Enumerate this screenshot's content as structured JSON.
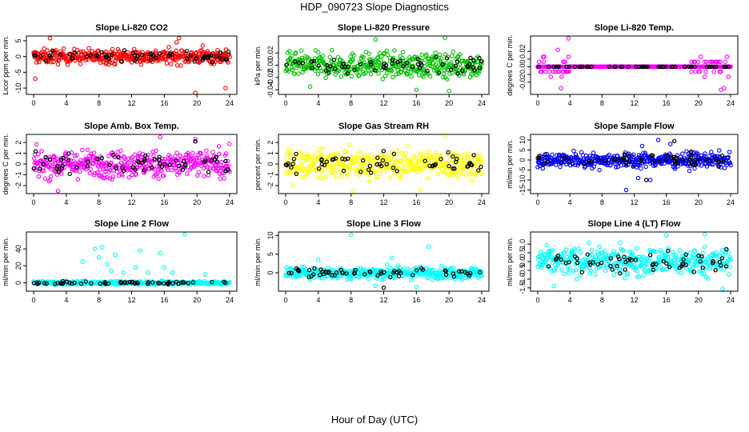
{
  "title": "HDP_090723  Slope Diagnostics",
  "x_axis_title": "Hour of Day (UTC)",
  "chart_data": [
    {
      "type": "scatter",
      "title": "Slope Li-820 CO2",
      "ylabel": "Licor ppm per min.",
      "color": "#ff0000",
      "xlim": [
        0,
        24
      ],
      "ylim": [
        -11.5,
        6
      ],
      "xticks": [
        0,
        4,
        8,
        12,
        16,
        20,
        24
      ],
      "yticks": [
        -10,
        -5,
        0,
        5
      ],
      "ytick_labels": [
        "-10",
        "-5",
        "0",
        "5"
      ],
      "series_note": "dense points spread about 0, roughly -3..3, rare outliers to +6 and -11; black points are an overlaid subset",
      "spread": 1.6,
      "outliers": [
        [
          2,
          5.8
        ],
        [
          0.2,
          -7
        ],
        [
          17.5,
          4.5
        ],
        [
          17.8,
          5.8
        ],
        [
          19.8,
          -11.5
        ],
        [
          23.5,
          -10
        ],
        [
          20.7,
          3.5
        ]
      ],
      "black_outliers": []
    },
    {
      "type": "scatter",
      "title": "Slope Li-820 Pressure",
      "ylabel": "kPa per min.",
      "color": "#00c000",
      "xlim": [
        0,
        24
      ],
      "ylim": [
        -0.045,
        0.045
      ],
      "xticks": [
        0,
        4,
        8,
        12,
        16,
        20,
        24
      ],
      "yticks": [
        -0.04,
        -0.02,
        0,
        0.02
      ],
      "ytick_labels": [
        "-0.04",
        "-0.02",
        "0.00",
        "0.02"
      ],
      "spread": 0.014,
      "outliers": [
        [
          19.5,
          0.045
        ],
        [
          11,
          0.042
        ],
        [
          16,
          -0.04
        ],
        [
          20,
          -0.042
        ],
        [
          3,
          -0.035
        ]
      ],
      "black_outliers": []
    },
    {
      "type": "scatter",
      "title": "Slope Li-820 Temp.",
      "ylabel": "degrees C per min.",
      "color": "#ff00ff",
      "xlim": [
        0,
        24
      ],
      "ylim": [
        -0.034,
        0.038
      ],
      "xticks": [
        0,
        4,
        8,
        12,
        16,
        20,
        24
      ],
      "yticks": [
        -0.02,
        -0.01,
        0,
        0.01,
        0.02
      ],
      "ytick_labels": [
        "-0.02",
        "",
        "0.00",
        "",
        "0.02"
      ],
      "series_note": "mostly exactly 0 with quantised steps of ±0.0065 near both ends of the day",
      "spread": 0.0,
      "quantised": true,
      "outliers": [
        [
          3.8,
          0.037
        ],
        [
          2.5,
          0.022
        ],
        [
          2.9,
          -0.028
        ],
        [
          23.2,
          -0.028
        ],
        [
          22.8,
          -0.03
        ]
      ],
      "black_outliers": []
    },
    {
      "type": "scatter",
      "title": "Slope Amb. Box Temp.",
      "ylabel": "degrees C per min.",
      "color": "#ff00ff",
      "xlim": [
        0,
        24
      ],
      "ylim": [
        -2.6,
        2.6
      ],
      "xticks": [
        0,
        4,
        8,
        12,
        16,
        20,
        24
      ],
      "yticks": [
        -2,
        -1,
        0,
        1,
        2
      ],
      "ytick_labels": [
        "-2",
        "-1",
        "0",
        "1",
        "2"
      ],
      "spread": 0.9,
      "outliers": [
        [
          3,
          -2.5
        ],
        [
          15.5,
          2.5
        ],
        [
          19.8,
          2.3
        ]
      ],
      "black_outliers": [
        [
          19.8,
          2.1
        ]
      ]
    },
    {
      "type": "scatter",
      "title": "Slope Gas Stream RH",
      "ylabel": "percent per min.",
      "color": "#ffff00",
      "xlim": [
        0,
        24
      ],
      "ylim": [
        -2.6,
        2.6
      ],
      "xticks": [
        0,
        4,
        8,
        12,
        16,
        20,
        24
      ],
      "yticks": [
        -2,
        -1,
        0,
        1,
        2
      ],
      "ytick_labels": [
        "-2",
        "-1",
        "0",
        "1",
        "2"
      ],
      "spread": 0.9,
      "outliers": [
        [
          19.5,
          2.6
        ],
        [
          8.3,
          -2.5
        ],
        [
          16.5,
          -2.4
        ]
      ],
      "black_outliers": []
    },
    {
      "type": "scatter",
      "title": "Slope Sample Flow",
      "ylabel": "ml/min per min.",
      "color": "#0000ff",
      "xlim": [
        0,
        24
      ],
      "ylim": [
        -16,
        12
      ],
      "xticks": [
        0,
        4,
        8,
        12,
        16,
        20,
        24
      ],
      "yticks": [
        -15,
        -10,
        -5,
        0,
        5,
        10
      ],
      "ytick_labels": [
        "-15",
        "-10",
        "-5",
        "0",
        "5",
        "10"
      ],
      "spread": 2.6,
      "outliers": [
        [
          11,
          -15
        ],
        [
          14,
          -10
        ],
        [
          15,
          10
        ],
        [
          16.5,
          8
        ],
        [
          13,
          7
        ],
        [
          12.5,
          -9
        ]
      ],
      "black_outliers": [
        [
          17,
          9.5
        ],
        [
          13.5,
          -10
        ]
      ]
    },
    {
      "type": "scatter",
      "title": "Slope Line 2 Flow",
      "ylabel": "ml/min per min.",
      "color": "#00ffff",
      "xlim": [
        0,
        24
      ],
      "ylim": [
        -8,
        58
      ],
      "xticks": [
        0,
        4,
        8,
        12,
        16,
        20,
        24
      ],
      "yticks": [
        0,
        20,
        40
      ],
      "ytick_labels": [
        "0",
        "20",
        "40"
      ],
      "spread": 1.4,
      "outliers": [
        [
          18.5,
          57
        ],
        [
          7.5,
          40
        ],
        [
          8.4,
          42
        ],
        [
          10,
          33
        ],
        [
          13,
          38
        ],
        [
          15.5,
          35
        ],
        [
          12.5,
          18
        ],
        [
          11,
          12
        ],
        [
          8,
          30
        ],
        [
          6,
          25
        ],
        [
          9,
          22
        ],
        [
          16,
          18
        ],
        [
          14,
          12
        ],
        [
          9.5,
          14
        ],
        [
          17,
          12
        ],
        [
          21,
          10
        ]
      ],
      "black_outliers": []
    },
    {
      "type": "scatter",
      "title": "Slope Line 3 Flow",
      "ylabel": "ml/min per min.",
      "color": "#00ffff",
      "xlim": [
        0,
        24
      ],
      "ylim": [
        -4.5,
        10.5
      ],
      "xticks": [
        0,
        4,
        8,
        12,
        16,
        20,
        24
      ],
      "yticks": [
        0,
        5,
        10
      ],
      "ytick_labels": [
        "0",
        "5",
        "10"
      ],
      "spread": 1.1,
      "outliers": [
        [
          8,
          10.2
        ],
        [
          17.5,
          7
        ],
        [
          4,
          3.5
        ],
        [
          13,
          4
        ],
        [
          11,
          -3.5
        ],
        [
          16,
          -3.8
        ]
      ],
      "black_outliers": [
        [
          12,
          -4
        ]
      ]
    },
    {
      "type": "scatter",
      "title": "Slope Line 4 (LT) Flow",
      "ylabel": "ml/min per min.",
      "color": "#00ffff",
      "xlim": [
        0,
        24
      ],
      "ylim": [
        -1.6,
        1.6
      ],
      "xticks": [
        0,
        4,
        8,
        12,
        16,
        20,
        24
      ],
      "yticks": [
        -1.5,
        -1,
        -0.5,
        0,
        0.5,
        1
      ],
      "ytick_labels": [
        "-1.5",
        "-1.0",
        "-0.5",
        "0.0",
        "0.5",
        "1.0"
      ],
      "spread": 0.55,
      "outliers": [
        [
          20.8,
          1.55
        ],
        [
          23,
          -1.55
        ],
        [
          2,
          -1.4
        ],
        [
          16,
          1.5
        ]
      ],
      "black_outliers": []
    }
  ]
}
